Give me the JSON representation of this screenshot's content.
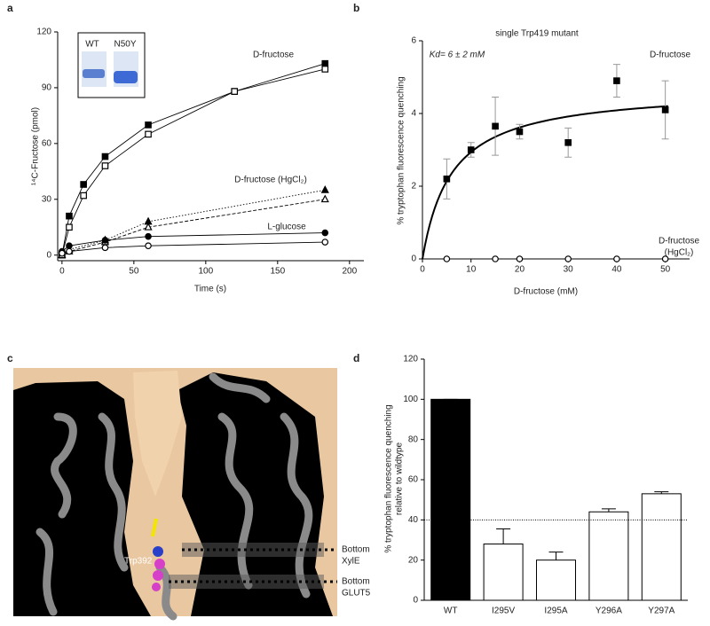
{
  "chart_data": [
    {
      "type": "line",
      "panel": "a",
      "ylabel": "¹⁴C-Fructose (pmol)",
      "xlabel": "Time (s)",
      "xlim": [
        -3,
        210
      ],
      "xticks": [
        0,
        50,
        100,
        150,
        200
      ],
      "ylim": [
        -3,
        120
      ],
      "yticks": [
        0,
        30,
        60,
        90,
        120
      ],
      "annotations": [
        "D-fructose",
        "D-fructose  (HgCl₂)",
        "L-glucose"
      ],
      "inset_labels": [
        "WT",
        "N50Y"
      ],
      "series": [
        {
          "x": [
            0,
            5,
            15,
            30,
            60,
            120,
            183
          ],
          "values": [
            0,
            21,
            38,
            53,
            70,
            88,
            103
          ],
          "color": "#000000",
          "marker": "square",
          "dash": "solid"
        },
        {
          "x": [
            0,
            5,
            15,
            30,
            60,
            120,
            183
          ],
          "values": [
            0,
            15,
            32,
            48,
            65,
            88,
            100
          ],
          "color": "#000000",
          "marker": "square-open",
          "dash": "solid"
        },
        {
          "x": [
            0,
            5,
            30,
            60,
            183
          ],
          "values": [
            0,
            3,
            8,
            18,
            35
          ],
          "color": "#000000",
          "marker": "triangle",
          "dash": "dotted"
        },
        {
          "x": [
            0,
            5,
            30,
            60,
            183
          ],
          "values": [
            0,
            2,
            7,
            15,
            30
          ],
          "color": "#000000",
          "marker": "triangle-open",
          "dash": "dashed"
        },
        {
          "x": [
            0,
            5,
            30,
            60,
            183
          ],
          "values": [
            2,
            5,
            8,
            10,
            12
          ],
          "color": "#000000",
          "marker": "circle",
          "dash": "solid"
        },
        {
          "x": [
            0,
            5,
            30,
            60,
            183
          ],
          "values": [
            1,
            2,
            4,
            5,
            7
          ],
          "color": "#000000",
          "marker": "circle-open",
          "dash": "solid"
        }
      ]
    },
    {
      "type": "scatter",
      "panel": "b",
      "title": "single Trp419 mutant",
      "ylabel": "% tryptophan fluorescence quenching",
      "xlabel": "D-fructose (mM)",
      "xlim": [
        0,
        55
      ],
      "xticks": [
        0,
        10,
        20,
        30,
        40,
        50
      ],
      "ylim": [
        0,
        6
      ],
      "yticks": [
        0,
        2,
        4,
        6
      ],
      "annotations": [
        "Kd= 6 ± 2 mM",
        "D-fructose",
        "D-fructose",
        "(HgCl₂)"
      ],
      "fit": {
        "vmax": 4.7,
        "kd": 6
      },
      "series": [
        {
          "x": [
            5,
            10,
            15,
            20,
            30,
            40,
            50
          ],
          "values": [
            2.2,
            3.0,
            3.65,
            3.5,
            3.2,
            4.9,
            4.1
          ],
          "errors": [
            0.55,
            0.2,
            0.8,
            0.2,
            0.4,
            0.45,
            0.8
          ],
          "color": "#000000",
          "marker": "square"
        },
        {
          "x": [
            5,
            15,
            20,
            30,
            40,
            50
          ],
          "values": [
            0,
            0,
            0,
            0,
            0,
            0
          ],
          "color": "#000000",
          "marker": "circle-open"
        }
      ]
    },
    {
      "type": "bar",
      "panel": "d",
      "ylabel": [
        "% tryptophan fluorescence quenching",
        "relative to wildtype"
      ],
      "categories": [
        "WT",
        "I295V",
        "I295A",
        "Y296A",
        "Y297A"
      ],
      "values": [
        100,
        28,
        20,
        44,
        53
      ],
      "errors": [
        0,
        7.5,
        4,
        1.5,
        1
      ],
      "colors": [
        "#000000",
        "#ffffff",
        "#ffffff",
        "#ffffff",
        "#ffffff"
      ],
      "reference_line": 40,
      "ylim": [
        0,
        120
      ],
      "yticks": [
        0,
        20,
        40,
        60,
        80,
        100,
        120
      ]
    }
  ],
  "panel_c": {
    "panel": "c",
    "labels": [
      "Trp392",
      "Bottom",
      "XylE",
      "Bottom",
      "GLUT5"
    ]
  }
}
